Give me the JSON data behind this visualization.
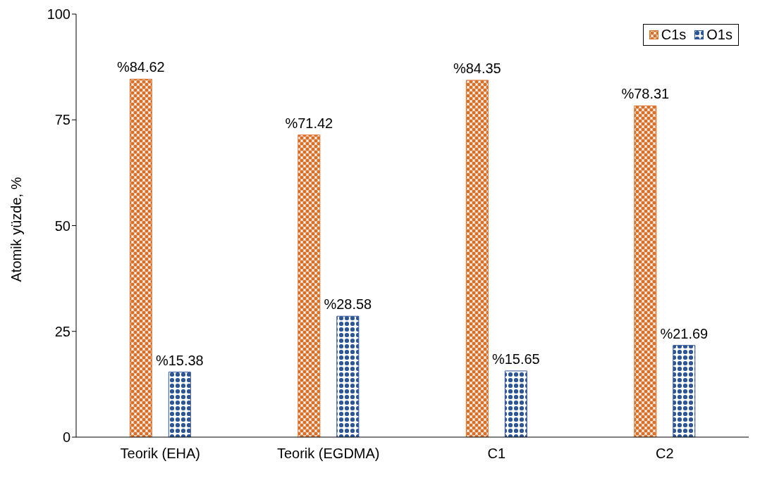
{
  "chart_data": {
    "type": "bar",
    "ylabel": "Atomik yüzde, %",
    "categories": [
      "Teorik (EHA)",
      "Teorik (EGDMA)",
      "C1",
      "C2"
    ],
    "series": [
      {
        "name": "C1s",
        "color": "#d9702a",
        "values": [
          84.62,
          71.42,
          84.35,
          78.31
        ],
        "value_labels": [
          "%84.62",
          "%71.42",
          "%84.35",
          "%78.31"
        ]
      },
      {
        "name": "O1s",
        "color": "#2e5597",
        "values": [
          15.38,
          28.58,
          15.65,
          21.69
        ],
        "value_labels": [
          "%15.38",
          "%28.58",
          "%15.65",
          "%21.69"
        ]
      }
    ],
    "ylim": [
      0,
      100
    ],
    "yticks": [
      0,
      25,
      50,
      75,
      100
    ],
    "grid": false,
    "legend": "top right"
  }
}
